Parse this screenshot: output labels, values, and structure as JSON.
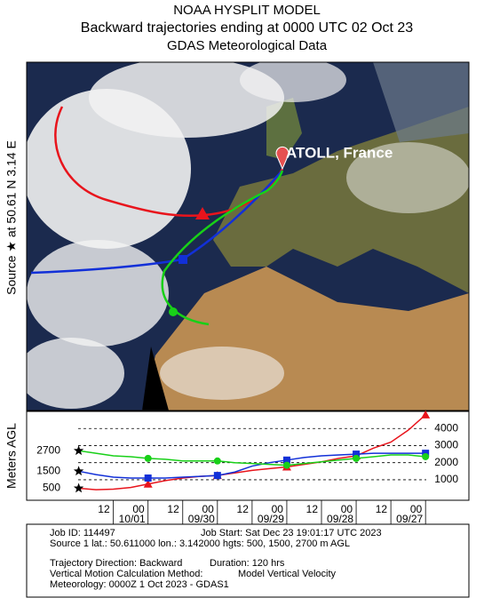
{
  "header": {
    "line1": "NOAA HYSPLIT MODEL",
    "line2": "Backward trajectories ending at 0000 UTC 02 Oct 23",
    "line3": "GDAS Meteorological Data"
  },
  "map": {
    "source_label": "Source ★ at 50.61 N 3.14 E",
    "site_label": "ATOLL, France"
  },
  "chart_data": {
    "type": "line",
    "ylabel": "Meters AGL",
    "x": [
      0,
      6,
      12,
      18,
      24,
      30,
      36,
      42,
      48,
      54,
      60,
      66,
      72,
      78,
      84,
      90,
      96,
      102,
      108,
      114,
      120
    ],
    "xlim": [
      -18,
      135
    ],
    "xticks": [
      {
        "value": 12,
        "label": "12"
      },
      {
        "value": 24,
        "label": "00"
      },
      {
        "value": 36,
        "label": "12"
      },
      {
        "value": 48,
        "label": "00"
      },
      {
        "value": 60,
        "label": "12"
      },
      {
        "value": 72,
        "label": "00"
      },
      {
        "value": 84,
        "label": "12"
      },
      {
        "value": 96,
        "label": "00"
      },
      {
        "value": 108,
        "label": "12"
      },
      {
        "value": 120,
        "label": "00"
      }
    ],
    "xdates": [
      {
        "value": 24,
        "label": "10/01"
      },
      {
        "value": 48,
        "label": "09/30"
      },
      {
        "value": 72,
        "label": "09/29"
      },
      {
        "value": 96,
        "label": "09/28"
      },
      {
        "value": 120,
        "label": "09/27"
      }
    ],
    "ylim": [
      -200,
      5000
    ],
    "yticks": [
      1000,
      2000,
      3000,
      4000
    ],
    "source_heights": [
      500,
      1500,
      2700
    ],
    "series": [
      {
        "color": "#e8141c",
        "marker": "triangle",
        "values": [
          500,
          420,
          450,
          550,
          750,
          950,
          1100,
          1200,
          1250,
          1400,
          1550,
          1650,
          1750,
          1900,
          2050,
          2250,
          2400,
          2850,
          3200,
          3900,
          4800
        ]
      },
      {
        "color": "#1230d8",
        "marker": "square",
        "values": [
          1500,
          1300,
          1150,
          1100,
          1100,
          1100,
          1150,
          1200,
          1250,
          1450,
          1800,
          2000,
          2150,
          2300,
          2400,
          2450,
          2500,
          2550,
          2550,
          2550,
          2550
        ]
      },
      {
        "color": "#18d018",
        "marker": "circle",
        "values": [
          2700,
          2550,
          2400,
          2350,
          2250,
          2200,
          2100,
          2100,
          2100,
          2000,
          1950,
          1900,
          1850,
          1950,
          2050,
          2150,
          2250,
          2350,
          2450,
          2450,
          2350
        ]
      }
    ]
  },
  "footer": {
    "job_id": "Job ID: 114497",
    "job_start": "Job Start: Sat Dec 23 19:01:17 UTC 2023",
    "source": "Source 1 lat.: 50.611000 lon.: 3.142000 hgts: 500, 1500, 2700 m AGL",
    "direction": "Trajectory Direction: Backward",
    "duration": "Duration: 120 hrs",
    "vertical": "Vertical Motion Calculation Method:",
    "vertical_value": "Model Vertical Velocity",
    "meteorology": "Meteorology: 0000Z 1 Oct 2023 - GDAS1"
  }
}
